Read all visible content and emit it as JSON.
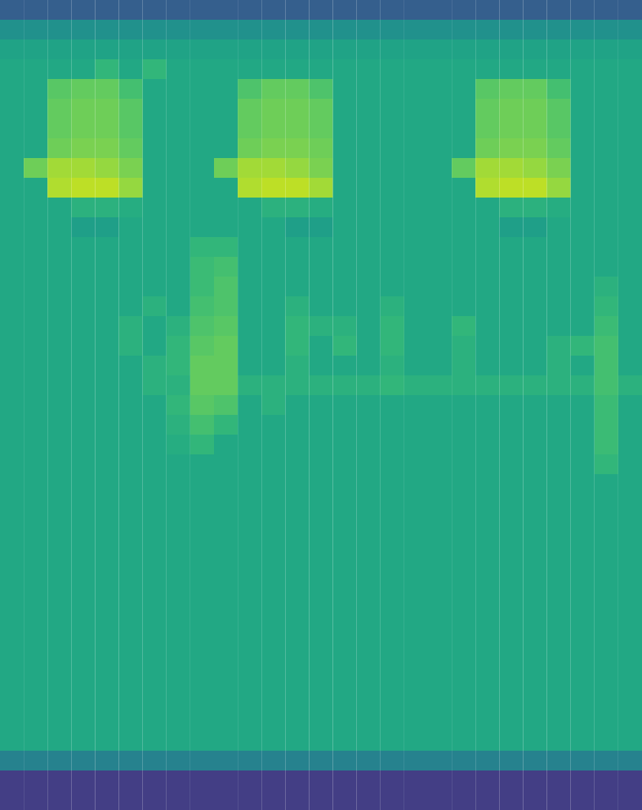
{
  "chart_data": {
    "type": "heatmap",
    "color": "viridis",
    "tick_labels": false,
    "zlim": [
      0,
      100
    ],
    "values": [
      [
        30,
        30,
        30,
        30,
        30,
        30,
        30,
        30,
        30,
        30,
        30,
        30,
        30,
        30,
        30,
        30,
        30,
        30,
        30,
        30,
        30,
        30,
        30,
        30,
        30,
        30,
        30
      ],
      [
        50,
        50,
        50,
        50,
        50,
        50,
        50,
        50,
        50,
        50,
        50,
        50,
        50,
        50,
        50,
        50,
        50,
        50,
        50,
        50,
        50,
        50,
        50,
        50,
        50,
        50,
        50
      ],
      [
        58,
        58,
        58,
        58,
        58,
        58,
        58,
        58,
        58,
        58,
        58,
        58,
        58,
        58,
        58,
        58,
        58,
        58,
        58,
        58,
        58,
        58,
        58,
        58,
        58,
        58,
        58
      ],
      [
        60,
        60,
        60,
        60,
        66,
        60,
        66,
        60,
        60,
        60,
        60,
        60,
        60,
        60,
        60,
        60,
        60,
        60,
        60,
        60,
        60,
        60,
        60,
        60,
        60,
        60,
        60
      ],
      [
        60,
        60,
        74,
        76,
        76,
        70,
        60,
        60,
        60,
        60,
        72,
        76,
        76,
        72,
        60,
        60,
        60,
        60,
        60,
        60,
        74,
        76,
        76,
        70,
        60,
        60,
        60
      ],
      [
        60,
        60,
        76,
        78,
        78,
        74,
        60,
        60,
        60,
        60,
        76,
        78,
        78,
        76,
        60,
        60,
        60,
        60,
        60,
        60,
        76,
        78,
        78,
        74,
        60,
        60,
        60
      ],
      [
        60,
        60,
        76,
        78,
        78,
        74,
        60,
        60,
        60,
        60,
        76,
        78,
        78,
        76,
        60,
        60,
        60,
        60,
        60,
        60,
        76,
        78,
        78,
        74,
        60,
        60,
        60
      ],
      [
        60,
        60,
        78,
        80,
        80,
        76,
        60,
        60,
        60,
        60,
        78,
        80,
        80,
        78,
        60,
        60,
        60,
        60,
        60,
        60,
        78,
        80,
        80,
        76,
        60,
        60,
        60
      ],
      [
        60,
        78,
        86,
        86,
        84,
        80,
        60,
        60,
        60,
        78,
        86,
        86,
        84,
        80,
        60,
        60,
        60,
        60,
        60,
        76,
        86,
        86,
        84,
        80,
        60,
        60,
        60
      ],
      [
        60,
        60,
        88,
        90,
        90,
        84,
        60,
        60,
        60,
        60,
        88,
        90,
        90,
        86,
        60,
        60,
        60,
        60,
        60,
        60,
        88,
        90,
        90,
        84,
        60,
        60,
        60
      ],
      [
        60,
        60,
        60,
        64,
        64,
        62,
        60,
        60,
        60,
        60,
        60,
        64,
        64,
        62,
        60,
        60,
        60,
        60,
        60,
        60,
        60,
        64,
        64,
        62,
        60,
        60,
        60
      ],
      [
        60,
        60,
        60,
        56,
        56,
        60,
        60,
        60,
        60,
        60,
        60,
        60,
        56,
        56,
        60,
        60,
        60,
        60,
        60,
        60,
        60,
        56,
        56,
        60,
        60,
        60,
        60
      ],
      [
        60,
        60,
        60,
        60,
        60,
        60,
        60,
        60,
        66,
        66,
        60,
        60,
        60,
        60,
        60,
        60,
        60,
        60,
        60,
        60,
        60,
        60,
        60,
        60,
        60,
        60,
        60
      ],
      [
        60,
        60,
        60,
        60,
        60,
        60,
        60,
        60,
        68,
        70,
        60,
        60,
        60,
        60,
        60,
        60,
        60,
        60,
        60,
        60,
        60,
        60,
        60,
        60,
        60,
        60,
        60
      ],
      [
        60,
        60,
        60,
        60,
        60,
        60,
        60,
        60,
        68,
        72,
        60,
        60,
        60,
        60,
        60,
        60,
        60,
        60,
        60,
        60,
        60,
        60,
        60,
        60,
        60,
        64,
        60
      ],
      [
        60,
        60,
        60,
        60,
        60,
        60,
        64,
        60,
        70,
        72,
        60,
        60,
        64,
        60,
        60,
        60,
        64,
        60,
        60,
        60,
        60,
        60,
        60,
        60,
        60,
        66,
        60
      ],
      [
        60,
        60,
        60,
        60,
        60,
        64,
        60,
        64,
        72,
        74,
        60,
        60,
        66,
        64,
        64,
        60,
        66,
        60,
        60,
        66,
        60,
        60,
        60,
        60,
        60,
        68,
        60
      ],
      [
        60,
        60,
        60,
        60,
        60,
        64,
        60,
        66,
        74,
        76,
        60,
        60,
        66,
        60,
        66,
        60,
        66,
        60,
        60,
        64,
        60,
        60,
        60,
        64,
        66,
        70,
        60
      ],
      [
        60,
        60,
        60,
        60,
        60,
        60,
        64,
        66,
        76,
        76,
        60,
        60,
        64,
        60,
        60,
        60,
        64,
        60,
        60,
        64,
        60,
        60,
        60,
        64,
        60,
        70,
        60
      ],
      [
        60,
        60,
        60,
        60,
        60,
        60,
        64,
        64,
        76,
        76,
        64,
        64,
        64,
        64,
        64,
        64,
        66,
        64,
        64,
        64,
        64,
        64,
        64,
        64,
        64,
        70,
        64
      ],
      [
        60,
        60,
        60,
        60,
        60,
        60,
        60,
        66,
        74,
        72,
        60,
        64,
        60,
        60,
        60,
        60,
        60,
        60,
        60,
        60,
        60,
        60,
        60,
        60,
        60,
        68,
        60
      ],
      [
        60,
        60,
        60,
        60,
        60,
        60,
        60,
        64,
        70,
        66,
        60,
        60,
        60,
        60,
        60,
        60,
        60,
        60,
        60,
        60,
        60,
        60,
        60,
        60,
        60,
        68,
        60
      ],
      [
        60,
        60,
        60,
        60,
        60,
        60,
        60,
        62,
        66,
        60,
        60,
        60,
        60,
        60,
        60,
        60,
        60,
        60,
        60,
        60,
        60,
        60,
        60,
        60,
        60,
        68,
        60
      ],
      [
        60,
        60,
        60,
        60,
        60,
        60,
        60,
        60,
        60,
        60,
        60,
        60,
        60,
        60,
        60,
        60,
        60,
        60,
        60,
        60,
        60,
        60,
        60,
        60,
        60,
        66,
        60
      ],
      [
        60,
        60,
        60,
        60,
        60,
        60,
        60,
        60,
        60,
        60,
        60,
        60,
        60,
        60,
        60,
        60,
        60,
        60,
        60,
        60,
        60,
        60,
        60,
        60,
        60,
        60,
        60
      ],
      [
        60,
        60,
        60,
        60,
        60,
        60,
        60,
        60,
        60,
        60,
        60,
        60,
        60,
        60,
        60,
        60,
        60,
        60,
        60,
        60,
        60,
        60,
        60,
        60,
        60,
        60,
        60
      ],
      [
        60,
        60,
        60,
        60,
        60,
        60,
        60,
        60,
        60,
        60,
        60,
        60,
        60,
        60,
        60,
        60,
        60,
        60,
        60,
        60,
        60,
        60,
        60,
        60,
        60,
        60,
        60
      ],
      [
        60,
        60,
        60,
        60,
        60,
        60,
        60,
        60,
        60,
        60,
        60,
        60,
        60,
        60,
        60,
        60,
        60,
        60,
        60,
        60,
        60,
        60,
        60,
        60,
        60,
        60,
        60
      ],
      [
        60,
        60,
        60,
        60,
        60,
        60,
        60,
        60,
        60,
        60,
        60,
        60,
        60,
        60,
        60,
        60,
        60,
        60,
        60,
        60,
        60,
        60,
        60,
        60,
        60,
        60,
        60
      ],
      [
        60,
        60,
        60,
        60,
        60,
        60,
        60,
        60,
        60,
        60,
        60,
        60,
        60,
        60,
        60,
        60,
        60,
        60,
        60,
        60,
        60,
        60,
        60,
        60,
        60,
        60,
        60
      ],
      [
        60,
        60,
        60,
        60,
        60,
        60,
        60,
        60,
        60,
        60,
        60,
        60,
        60,
        60,
        60,
        60,
        60,
        60,
        60,
        60,
        60,
        60,
        60,
        60,
        60,
        60,
        60
      ],
      [
        60,
        60,
        60,
        60,
        60,
        60,
        60,
        60,
        60,
        60,
        60,
        60,
        60,
        60,
        60,
        60,
        60,
        60,
        60,
        60,
        60,
        60,
        60,
        60,
        60,
        60,
        60
      ],
      [
        60,
        60,
        60,
        60,
        60,
        60,
        60,
        60,
        60,
        60,
        60,
        60,
        60,
        60,
        60,
        60,
        60,
        60,
        60,
        60,
        60,
        60,
        60,
        60,
        60,
        60,
        60
      ],
      [
        60,
        60,
        60,
        60,
        60,
        60,
        60,
        60,
        60,
        60,
        60,
        60,
        60,
        60,
        60,
        60,
        60,
        60,
        60,
        60,
        60,
        60,
        60,
        60,
        60,
        60,
        60
      ],
      [
        60,
        60,
        60,
        60,
        60,
        60,
        60,
        60,
        60,
        60,
        60,
        60,
        60,
        60,
        60,
        60,
        60,
        60,
        60,
        60,
        60,
        60,
        60,
        60,
        60,
        60,
        60
      ],
      [
        60,
        60,
        60,
        60,
        60,
        60,
        60,
        60,
        60,
        60,
        60,
        60,
        60,
        60,
        60,
        60,
        60,
        60,
        60,
        60,
        60,
        60,
        60,
        60,
        60,
        60,
        60
      ],
      [
        60,
        60,
        60,
        60,
        60,
        60,
        60,
        60,
        60,
        60,
        60,
        60,
        60,
        60,
        60,
        60,
        60,
        60,
        60,
        60,
        60,
        60,
        60,
        60,
        60,
        60,
        60
      ],
      [
        60,
        60,
        60,
        60,
        60,
        60,
        60,
        60,
        60,
        60,
        60,
        60,
        60,
        60,
        60,
        60,
        60,
        60,
        60,
        60,
        60,
        60,
        60,
        60,
        60,
        60,
        60
      ],
      [
        44,
        44,
        44,
        44,
        44,
        44,
        44,
        44,
        44,
        44,
        44,
        44,
        44,
        44,
        44,
        44,
        44,
        44,
        44,
        44,
        44,
        44,
        44,
        44,
        44,
        44,
        44
      ],
      [
        18,
        18,
        18,
        18,
        18,
        18,
        18,
        18,
        18,
        18,
        18,
        18,
        18,
        18,
        18,
        18,
        18,
        18,
        18,
        18,
        18,
        18,
        18,
        18,
        18,
        18,
        18
      ],
      [
        18,
        18,
        18,
        18,
        18,
        18,
        18,
        18,
        18,
        18,
        18,
        18,
        18,
        18,
        18,
        18,
        18,
        18,
        18,
        18,
        18,
        18,
        18,
        18,
        18,
        18,
        18
      ]
    ]
  }
}
